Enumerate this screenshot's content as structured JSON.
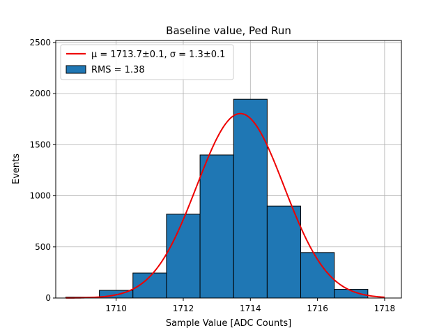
{
  "chart_data": {
    "type": "bar",
    "title": "Baseline value, Ped Run",
    "xlabel": "Sample Value [ADC Counts]",
    "ylabel": "Events",
    "xlim": [
      1708.2,
      1718.5
    ],
    "ylim": [
      0,
      2520
    ],
    "xticks": [
      1710,
      1712,
      1714,
      1716,
      1718
    ],
    "yticks": [
      0,
      500,
      1000,
      1500,
      2000,
      2500
    ],
    "grid": true,
    "legend_position": "top-left",
    "bins": [
      {
        "left": 1708.5,
        "right": 1709.5,
        "count": 8
      },
      {
        "left": 1709.5,
        "right": 1710.5,
        "count": 75
      },
      {
        "left": 1710.5,
        "right": 1711.5,
        "count": 245
      },
      {
        "left": 1711.5,
        "right": 1712.5,
        "count": 820
      },
      {
        "left": 1712.5,
        "right": 1713.5,
        "count": 1400
      },
      {
        "left": 1713.5,
        "right": 1714.5,
        "count": 1945
      },
      {
        "left": 1714.5,
        "right": 1715.5,
        "count": 900
      },
      {
        "left": 1715.5,
        "right": 1716.5,
        "count": 445
      },
      {
        "left": 1716.5,
        "right": 1717.5,
        "count": 85
      }
    ],
    "fit": {
      "name": "μ = 1713.7±0.1, σ = 1.3±0.1",
      "mu": 1713.7,
      "sigma": 1.3,
      "amplitude": 1805,
      "x_range": [
        1708.5,
        1718.0
      ],
      "color": "#ee0000"
    },
    "histogram": {
      "name": "RMS = 1.38",
      "color": "#1f77b4",
      "edge_color": "#000000"
    }
  }
}
